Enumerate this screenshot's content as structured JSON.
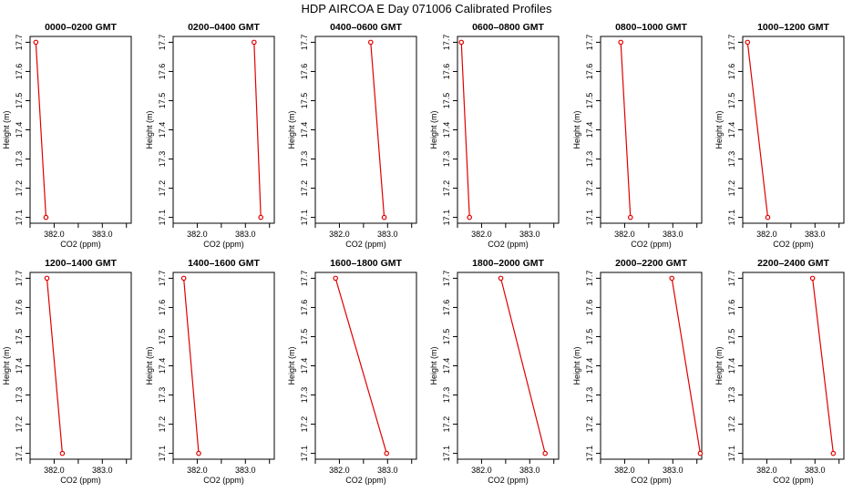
{
  "title": "HDP  AIRCOA E  Day 071006  Calibrated Profiles",
  "axes": {
    "xlabel": "CO2 (ppm)",
    "ylabel": "Height (m)",
    "x_ticks": [
      "382.0",
      "383.0"
    ],
    "y_ticks": [
      "17.1",
      "17.2",
      "17.3",
      "17.4",
      "17.5",
      "17.6",
      "17.7"
    ]
  },
  "colors": {
    "series": "#e00000",
    "axis": "#000000"
  },
  "chart_data": [
    {
      "type": "line",
      "title": "0000–0200 GMT",
      "xlim": [
        381.5,
        383.6
      ],
      "ylim": [
        17.08,
        17.72
      ],
      "x": [
        381.62,
        381.83
      ],
      "y": [
        17.7,
        17.1
      ]
    },
    {
      "type": "line",
      "title": "0200–0400 GMT",
      "xlim": [
        381.5,
        383.6
      ],
      "ylim": [
        17.08,
        17.72
      ],
      "x": [
        383.18,
        383.32
      ],
      "y": [
        17.7,
        17.1
      ]
    },
    {
      "type": "line",
      "title": "0400–0600 GMT",
      "xlim": [
        381.5,
        383.6
      ],
      "ylim": [
        17.08,
        17.72
      ],
      "x": [
        382.65,
        382.93
      ],
      "y": [
        17.7,
        17.1
      ]
    },
    {
      "type": "line",
      "title": "0600–0800 GMT",
      "xlim": [
        381.5,
        383.6
      ],
      "ylim": [
        17.08,
        17.72
      ],
      "x": [
        381.58,
        381.75
      ],
      "y": [
        17.7,
        17.1
      ]
    },
    {
      "type": "line",
      "title": "0800–1000 GMT",
      "xlim": [
        381.5,
        383.6
      ],
      "ylim": [
        17.08,
        17.72
      ],
      "x": [
        381.92,
        382.12
      ],
      "y": [
        17.7,
        17.1
      ]
    },
    {
      "type": "line",
      "title": "1000–1200 GMT",
      "xlim": [
        381.5,
        383.6
      ],
      "ylim": [
        17.08,
        17.72
      ],
      "x": [
        381.6,
        382.02
      ],
      "y": [
        17.7,
        17.1
      ]
    },
    {
      "type": "line",
      "title": "1200–1400 GMT",
      "xlim": [
        381.5,
        383.6
      ],
      "ylim": [
        17.08,
        17.72
      ],
      "x": [
        381.85,
        382.17
      ],
      "y": [
        17.7,
        17.1
      ]
    },
    {
      "type": "line",
      "title": "1400–1600 GMT",
      "xlim": [
        381.5,
        383.6
      ],
      "ylim": [
        17.08,
        17.72
      ],
      "x": [
        381.72,
        382.03
      ],
      "y": [
        17.7,
        17.1
      ]
    },
    {
      "type": "line",
      "title": "1600–1800 GMT",
      "xlim": [
        381.5,
        383.6
      ],
      "ylim": [
        17.08,
        17.72
      ],
      "x": [
        381.92,
        382.98
      ],
      "y": [
        17.7,
        17.1
      ]
    },
    {
      "type": "line",
      "title": "1800–2000 GMT",
      "xlim": [
        381.5,
        383.6
      ],
      "ylim": [
        17.08,
        17.72
      ],
      "x": [
        382.4,
        383.32
      ],
      "y": [
        17.7,
        17.1
      ]
    },
    {
      "type": "line",
      "title": "2000–2200 GMT",
      "xlim": [
        381.5,
        383.6
      ],
      "ylim": [
        17.08,
        17.72
      ],
      "x": [
        382.98,
        383.57
      ],
      "y": [
        17.7,
        17.1
      ]
    },
    {
      "type": "line",
      "title": "2200–2400 GMT",
      "xlim": [
        381.5,
        383.6
      ],
      "ylim": [
        17.08,
        17.72
      ],
      "x": [
        382.95,
        383.38
      ],
      "y": [
        17.7,
        17.1
      ]
    }
  ]
}
